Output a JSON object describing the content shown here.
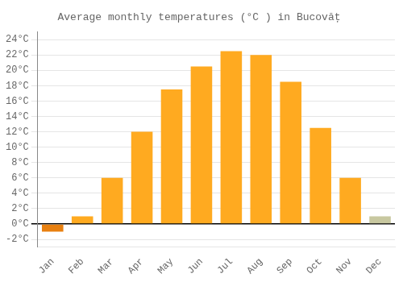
{
  "chart_data": {
    "type": "bar",
    "title": "Average monthly temperatures (°C ) in Bucovăț",
    "categories": [
      "Jan",
      "Feb",
      "Mar",
      "Apr",
      "May",
      "Jun",
      "Jul",
      "Aug",
      "Sep",
      "Oct",
      "Nov",
      "Dec"
    ],
    "values": [
      -1.0,
      1.0,
      6.0,
      12.0,
      17.5,
      20.5,
      22.5,
      22.0,
      18.5,
      12.5,
      6.0,
      1.0
    ],
    "colors": [
      "#E88010",
      "#FFAA20",
      "#FFAA20",
      "#FFAA20",
      "#FFAA20",
      "#FFAA20",
      "#FFAA20",
      "#FFAA20",
      "#FFAA20",
      "#FFAA20",
      "#FFAA20",
      "#C8C8A0"
    ],
    "ylim": [
      -3,
      25
    ],
    "yticks": [
      {
        "value": -2,
        "label": "-2°C"
      },
      {
        "value": 0,
        "label": "0°C"
      },
      {
        "value": 2,
        "label": "2°C"
      },
      {
        "value": 4,
        "label": "4°C"
      },
      {
        "value": 6,
        "label": "6°C"
      },
      {
        "value": 8,
        "label": "8°C"
      },
      {
        "value": 10,
        "label": "10°C"
      },
      {
        "value": 12,
        "label": "12°C"
      },
      {
        "value": 14,
        "label": "14°C"
      },
      {
        "value": 16,
        "label": "16°C"
      },
      {
        "value": 18,
        "label": "18°C"
      },
      {
        "value": 20,
        "label": "20°C"
      },
      {
        "value": 22,
        "label": "22°C"
      },
      {
        "value": 24,
        "label": "24°C"
      }
    ],
    "grid": true
  }
}
